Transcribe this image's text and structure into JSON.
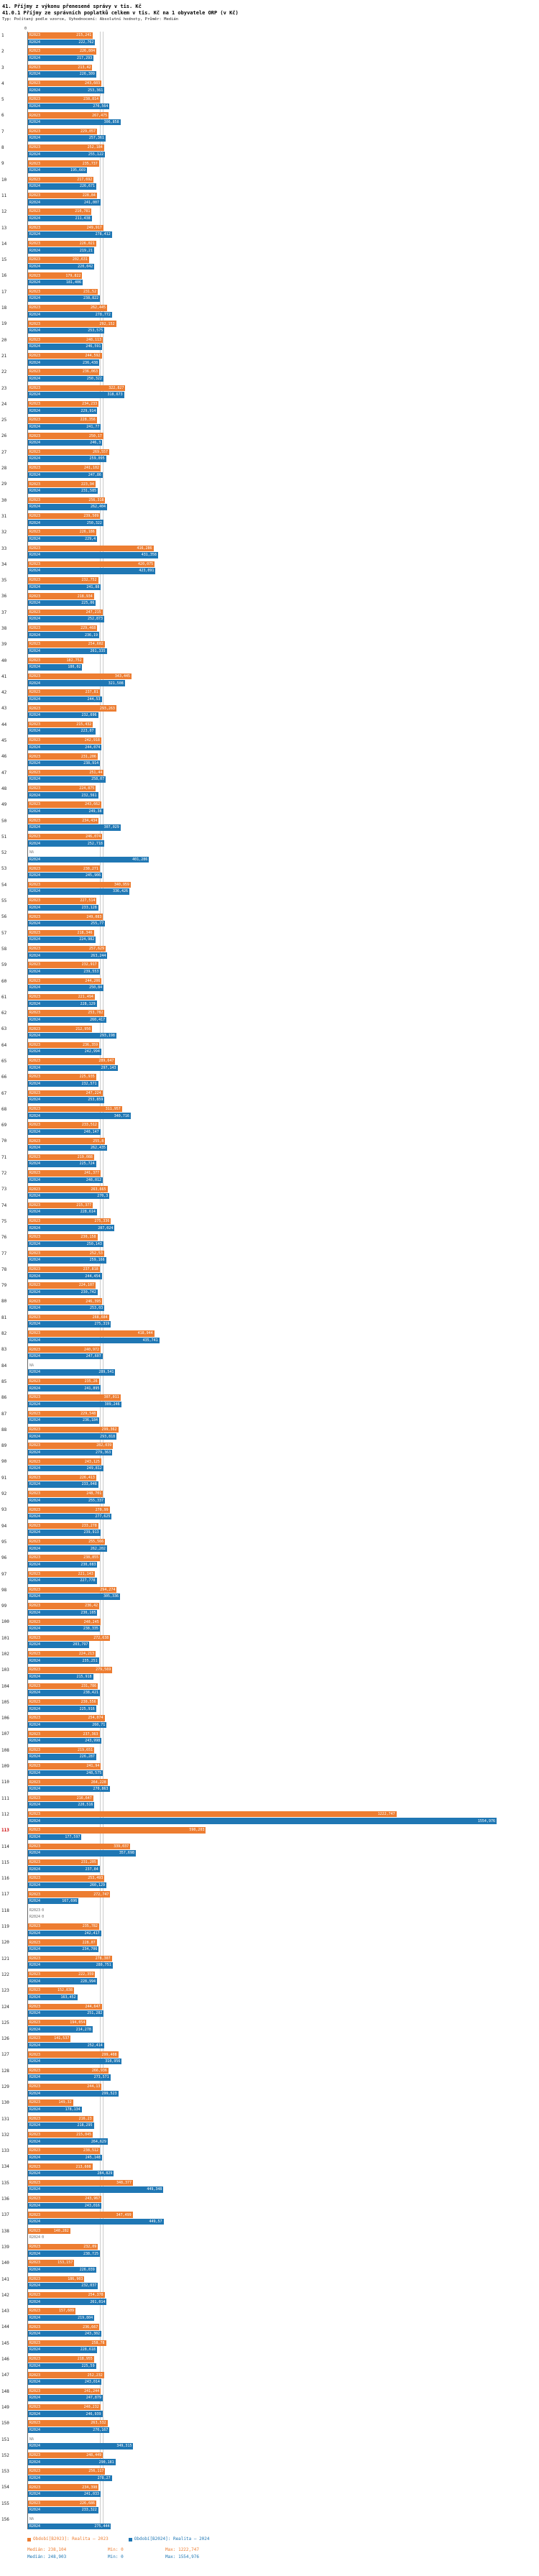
{
  "header": {
    "title1": "41. Příjmy z výkonu přenesené správy v tis. Kč",
    "title2": "41.0.1 Příjmy ze správních poplatků celkem v tis. Kč na 1 obyvatele ORP (v Kč)",
    "meta": "Typ: Počítaný podle vzorce, Vyhodnocení: Absolutní hodnoty, Průměr: Medián"
  },
  "legend": {
    "median_label": "Medián:",
    "min_label": "Min:",
    "max_label": "Max:"
  },
  "chart_data": {
    "type": "bar",
    "orientation": "horizontal",
    "grid": "off",
    "legend_position": "bottom",
    "axis": {
      "zero_label": "0",
      "max_value": 1554.976
    },
    "highlight_row": 113,
    "series": [
      {
        "name": "R2023",
        "color": "#ED7D31",
        "legend": "Období[B2023]: Realita – 2023",
        "median": "238,104",
        "min": "0",
        "max": "1222,747"
      },
      {
        "name": "R2024",
        "color": "#1F77B4",
        "legend": "Období[B2024]: Realita – 2024",
        "median": "248,903",
        "min": "0",
        "max": "1554,976"
      }
    ],
    "rows": [
      {
        "n": 1,
        "v23": "215,241",
        "v24": "222,762"
      },
      {
        "n": 2,
        "v23": "226,804",
        "v24": "217,293"
      },
      {
        "n": 3,
        "v23": "213,42",
        "v24": "226,309"
      },
      {
        "n": 4,
        "v23": "243,603",
        "v24": "253,361"
      },
      {
        "n": 5,
        "v23": "238,814",
        "v24": "270,564"
      },
      {
        "n": 6,
        "v23": "267,475",
        "v24": "306,858"
      },
      {
        "n": 7,
        "v23": "229,057",
        "v24": "257,361"
      },
      {
        "n": 8,
        "v23": "252,184",
        "v24": "255,122"
      },
      {
        "n": 9,
        "v23": "235,737",
        "v24": "195,669"
      },
      {
        "n": 10,
        "v23": "217,692",
        "v24": "226,671"
      },
      {
        "n": 11,
        "v23": "228,84",
        "v24": "241,007"
      },
      {
        "n": 12,
        "v23": "210,781",
        "v24": "211,438"
      },
      {
        "n": 13,
        "v23": "249,917",
        "v24": "278,412"
      },
      {
        "n": 14,
        "v23": "226,021",
        "v24": "219,21"
      },
      {
        "n": 15,
        "v23": "202,631",
        "v24": "220,042"
      },
      {
        "n": 16,
        "v23": "179,822",
        "v24": "181,406"
      },
      {
        "n": 17,
        "v23": "231,52",
        "v24": "238,822"
      },
      {
        "n": 18,
        "v23": "262,445",
        "v24": "278,772"
      },
      {
        "n": 19,
        "v23": "292,152",
        "v24": "253,575"
      },
      {
        "n": 20,
        "v23": "248,113",
        "v24": "246,591"
      },
      {
        "n": 21,
        "v23": "244,592",
        "v24": "236,438"
      },
      {
        "n": 22,
        "v23": "236,063",
        "v24": "250,322"
      },
      {
        "n": 23,
        "v23": "322,827",
        "v24": "318,673"
      },
      {
        "n": 24,
        "v23": "234,233",
        "v24": "229,914"
      },
      {
        "n": 25,
        "v23": "228,356",
        "v24": "241,77"
      },
      {
        "n": 26,
        "v23": "250,17",
        "v24": "246,3"
      },
      {
        "n": 27,
        "v23": "269,557",
        "v24": "259,095"
      },
      {
        "n": 28,
        "v23": "241,102",
        "v24": "247,86"
      },
      {
        "n": 29,
        "v23": "223,94",
        "v24": "231,585"
      },
      {
        "n": 30,
        "v23": "256,318",
        "v24": "262,404"
      },
      {
        "n": 31,
        "v23": "239,509",
        "v24": "250,322"
      },
      {
        "n": 32,
        "v23": "226,186",
        "v24": "229,4"
      },
      {
        "n": 33,
        "v23": "416,286",
        "v24": "431,358"
      },
      {
        "n": 34,
        "v23": "420,075",
        "v24": "423,091"
      },
      {
        "n": 35,
        "v23": "232,752",
        "v24": "241,88"
      },
      {
        "n": 36,
        "v23": "218,934",
        "v24": "225,06"
      },
      {
        "n": 37,
        "v23": "247,215",
        "v24": "252,873"
      },
      {
        "n": 38,
        "v23": "229,468",
        "v24": "236,19"
      },
      {
        "n": 39,
        "v23": "254,602",
        "v24": "261,335"
      },
      {
        "n": 40,
        "v23": "182,752",
        "v24": "180,02"
      },
      {
        "n": 41,
        "v23": "343,445",
        "v24": "321,508"
      },
      {
        "n": 42,
        "v23": "237,81",
        "v24": "244,53"
      },
      {
        "n": 43,
        "v23": "293,263",
        "v24": "232,696"
      },
      {
        "n": 44,
        "v23": "215,432",
        "v24": "223,07"
      },
      {
        "n": 45,
        "v23": "242,918",
        "v24": "244,074"
      },
      {
        "n": 46,
        "v23": "231,206",
        "v24": "238,914"
      },
      {
        "n": 47,
        "v23": "251,44",
        "v24": "258,07"
      },
      {
        "n": 48,
        "v23": "224,875",
        "v24": "232,561"
      },
      {
        "n": 49,
        "v23": "243,662",
        "v24": "249,38"
      },
      {
        "n": 50,
        "v23": "234,434",
        "v24": "307,029"
      },
      {
        "n": 51,
        "v23": "246,074",
        "v24": "252,718"
      },
      {
        "n": 52,
        "v23": "NA",
        "v24": "401,286"
      },
      {
        "n": 53,
        "v23": "238,271",
        "v24": "245,906"
      },
      {
        "n": 54,
        "v23": "340,959",
        "v24": "336,426"
      },
      {
        "n": 55,
        "v23": "227,514",
        "v24": "233,128"
      },
      {
        "n": 56,
        "v23": "249,083",
        "v24": "255,77"
      },
      {
        "n": 57,
        "v23": "218,346",
        "v24": "224,982"
      },
      {
        "n": 58,
        "v23": "257,629",
        "v24": "263,244"
      },
      {
        "n": 59,
        "v23": "232,917",
        "v24": "239,553"
      },
      {
        "n": 60,
        "v23": "244,206",
        "v24": "250,84"
      },
      {
        "n": 61,
        "v23": "221,494",
        "v24": "228,129"
      },
      {
        "n": 62,
        "v23": "253,782",
        "v24": "260,417"
      },
      {
        "n": 63,
        "v23": "212,956",
        "v24": "293,198"
      },
      {
        "n": 64,
        "v23": "236,359",
        "v24": "242,994"
      },
      {
        "n": 65,
        "v23": "289,647",
        "v24": "297,143"
      },
      {
        "n": 66,
        "v23": "225,935",
        "v24": "232,571"
      },
      {
        "n": 67,
        "v23": "247,224",
        "v24": "253,859"
      },
      {
        "n": 68,
        "v23": "311,957",
        "v24": "340,716"
      },
      {
        "n": 69,
        "v23": "233,512",
        "v24": "240,147"
      },
      {
        "n": 70,
        "v23": "255,8",
        "v24": "262,435"
      },
      {
        "n": 71,
        "v23": "219,088",
        "v24": "225,724"
      },
      {
        "n": 72,
        "v23": "241,377",
        "v24": "248,012"
      },
      {
        "n": 73,
        "v23": "263,665",
        "v24": "270,3"
      },
      {
        "n": 74,
        "v23": "215,377",
        "v24": "228,614"
      },
      {
        "n": 75,
        "v23": "275,336",
        "v24": "287,024"
      },
      {
        "n": 76,
        "v23": "230,158",
        "v24": "250,143"
      },
      {
        "n": 77,
        "v23": "252,53",
        "v24": "259,166"
      },
      {
        "n": 78,
        "v23": "237,818",
        "v24": "244,454"
      },
      {
        "n": 79,
        "v23": "224,107",
        "v24": "230,742"
      },
      {
        "n": 80,
        "v23": "246,395",
        "v24": "253,03"
      },
      {
        "n": 81,
        "v23": "268,684",
        "v24": "275,319"
      },
      {
        "n": 82,
        "v23": "418,944",
        "v24": "435,741"
      },
      {
        "n": 83,
        "v23": "240,972",
        "v24": "247,607"
      },
      {
        "n": 84,
        "v23": "NA",
        "v24": "289,541"
      },
      {
        "n": 85,
        "v23": "235,26",
        "v24": "241,895"
      },
      {
        "n": 86,
        "v23": "307,011",
        "v24": "309,246"
      },
      {
        "n": 87,
        "v23": "229,548",
        "v24": "236,184"
      },
      {
        "n": 88,
        "v23": "299,362",
        "v24": "293,818"
      },
      {
        "n": 89,
        "v23": "282,039",
        "v24": "279,363"
      },
      {
        "n": 90,
        "v23": "243,125",
        "v24": "249,812"
      },
      {
        "n": 91,
        "v23": "226,413",
        "v24": "233,048"
      },
      {
        "n": 92,
        "v23": "248,701",
        "v24": "255,337"
      },
      {
        "n": 93,
        "v23": "270,99",
        "v24": "277,625"
      },
      {
        "n": 94,
        "v23": "233,278",
        "v24": "239,913"
      },
      {
        "n": 95,
        "v23": "255,566",
        "v24": "262,202"
      },
      {
        "n": 96,
        "v23": "238,855",
        "v24": "230,083"
      },
      {
        "n": 97,
        "v23": "221,143",
        "v24": "227,778"
      },
      {
        "n": 98,
        "v23": "294,274",
        "v24": "305,336"
      },
      {
        "n": 99,
        "v23": "236,42",
        "v24": "230,105"
      },
      {
        "n": 100,
        "v23": "240,245",
        "v24": "238,335"
      },
      {
        "n": 101,
        "v23": "272,638",
        "v24": "203,797"
      },
      {
        "n": 102,
        "v23": "224,213",
        "v24": "235,251"
      },
      {
        "n": 103,
        "v23": "279,569",
        "v24": "215,918"
      },
      {
        "n": 104,
        "v23": "231,786",
        "v24": "238,421"
      },
      {
        "n": 105,
        "v23": "230,556",
        "v24": "225,916"
      },
      {
        "n": 106,
        "v23": "254,074",
        "v24": "260,71"
      },
      {
        "n": 107,
        "v23": "237,363",
        "v24": "243,998"
      },
      {
        "n": 108,
        "v23": "219,651",
        "v24": "226,287"
      },
      {
        "n": 109,
        "v23": "241,94",
        "v24": "248,575"
      },
      {
        "n": 110,
        "v23": "264,228",
        "v24": "270,863"
      },
      {
        "n": 111,
        "v23": "216,647",
        "v24": "220,516"
      },
      {
        "n": 112,
        "v23": "1222,747",
        "v24": "1554,976"
      },
      {
        "n": 113,
        "v23": "590,203",
        "v24": "177,597"
      },
      {
        "n": 114,
        "v23": "339,037",
        "v24": "357,698"
      },
      {
        "n": 115,
        "v23": "231,205",
        "v24": "237,84"
      },
      {
        "n": 116,
        "v23": "253,493",
        "v24": "260,129"
      },
      {
        "n": 117,
        "v23": "272,747",
        "v24": "167,696"
      },
      {
        "n": 118,
        "v23": "0",
        "v24": "0"
      },
      {
        "n": 119,
        "v23": "235,782",
        "v24": "242,417"
      },
      {
        "n": 120,
        "v23": "228,07",
        "v24": "234,706"
      },
      {
        "n": 121,
        "v23": "278,307",
        "v24": "280,751"
      },
      {
        "n": 122,
        "v23": "222,359",
        "v24": "228,994"
      },
      {
        "n": 123,
        "v23": "152,838",
        "v24": "163,452"
      },
      {
        "n": 124,
        "v23": "244,647",
        "v24": "251,282"
      },
      {
        "n": 125,
        "v23": "194,054",
        "v24": "214,278"
      },
      {
        "n": 126,
        "v23": "141,537",
        "v24": "252,414"
      },
      {
        "n": 127,
        "v23": "299,408",
        "v24": "310,956"
      },
      {
        "n": 128,
        "v23": "266,936",
        "v24": "273,571"
      },
      {
        "n": 129,
        "v23": "244,13",
        "v24": "299,523"
      },
      {
        "n": 130,
        "v23": "149,32",
        "v24": "178,134"
      },
      {
        "n": 131,
        "v23": "216,23",
        "v24": "218,295"
      },
      {
        "n": 132,
        "v23": "215,045",
        "v24": "264,629"
      },
      {
        "n": 133,
        "v23": "238,512",
        "v24": "245,148"
      },
      {
        "n": 134,
        "v23": "213,608",
        "v24": "284,829"
      },
      {
        "n": 135,
        "v23": "348,377",
        "v24": "449,348"
      },
      {
        "n": 136,
        "v23": "243,967",
        "v24": "243,016"
      },
      {
        "n": 137,
        "v23": "347,499",
        "v24": "449,57"
      },
      {
        "n": 138,
        "v23": "140,282",
        "v24": "0"
      },
      {
        "n": 139,
        "v23": "232,09",
        "v24": "238,725"
      },
      {
        "n": 140,
        "v23": "153,157",
        "v24": "226,039"
      },
      {
        "n": 141,
        "v23": "186,903",
        "v24": "232,037"
      },
      {
        "n": 142,
        "v23": "254,378",
        "v24": "261,014"
      },
      {
        "n": 143,
        "v23": "157,609",
        "v24": "219,804"
      },
      {
        "n": 144,
        "v23": "236,667",
        "v24": "243,302"
      },
      {
        "n": 145,
        "v23": "258,78",
        "v24": "228,618"
      },
      {
        "n": 146,
        "v23": "218,955",
        "v24": "225,59"
      },
      {
        "n": 147,
        "v23": "252,232",
        "v24": "243,014"
      },
      {
        "n": 148,
        "v23": "241,244",
        "v24": "247,879"
      },
      {
        "n": 149,
        "v23": "240,232",
        "v24": "246,939"
      },
      {
        "n": 150,
        "v23": "263,532",
        "v24": "270,167"
      },
      {
        "n": 151,
        "v23": "NA",
        "v24": "349,315"
      },
      {
        "n": 152,
        "v23": "248,449",
        "v24": "290,181"
      },
      {
        "n": 153,
        "v23": "256,117",
        "v24": "278,27"
      },
      {
        "n": 154,
        "v23": "234,398",
        "v24": "241,033"
      },
      {
        "n": 155,
        "v23": "226,686",
        "v24": "233,322"
      },
      {
        "n": 156,
        "v23": "NA",
        "v24": "275,444"
      }
    ]
  }
}
